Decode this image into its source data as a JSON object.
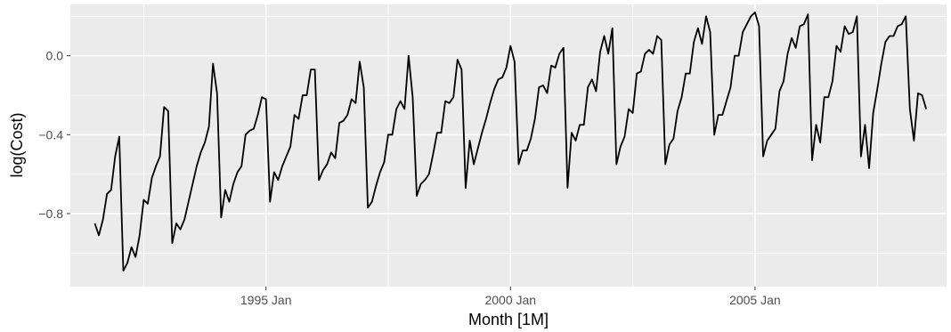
{
  "chart_data": {
    "type": "line",
    "xlabel": "Month [1M]",
    "ylabel": "log(Cost)",
    "x_start": "1991 Jul",
    "x_end": "2008 Jun",
    "x_step": "1 month",
    "xlim": [
      "1991 Jan",
      "2008 Dec"
    ],
    "ylim": [
      -1.17,
      0.26
    ],
    "x_ticks": [
      {
        "label": "1995 Jan",
        "value": "1995-01"
      },
      {
        "label": "2000 Jan",
        "value": "2000-01"
      },
      {
        "label": "2005 Jan",
        "value": "2005-01"
      }
    ],
    "x_minor_ticks": [
      "1992-07",
      "1997-07",
      "2002-07",
      "2007-07"
    ],
    "y_ticks": [
      {
        "label": "0.0",
        "value": 0.0
      },
      {
        "label": "−0.4",
        "value": -0.4
      },
      {
        "label": "−0.8",
        "value": -0.8
      }
    ],
    "y_minor_ticks": [
      -1.0,
      -0.6,
      -0.2,
      0.2
    ],
    "series": [
      {
        "values": [
          -0.85,
          -0.91,
          -0.83,
          -0.7,
          -0.68,
          -0.51,
          -0.41,
          -1.09,
          -1.05,
          -0.97,
          -1.02,
          -0.91,
          -0.73,
          -0.75,
          -0.62,
          -0.56,
          -0.51,
          -0.26,
          -0.28,
          -0.95,
          -0.85,
          -0.88,
          -0.83,
          -0.74,
          -0.65,
          -0.56,
          -0.49,
          -0.44,
          -0.36,
          -0.04,
          -0.19,
          -0.82,
          -0.68,
          -0.74,
          -0.65,
          -0.59,
          -0.56,
          -0.4,
          -0.38,
          -0.37,
          -0.3,
          -0.21,
          -0.22,
          -0.74,
          -0.59,
          -0.63,
          -0.56,
          -0.51,
          -0.46,
          -0.3,
          -0.32,
          -0.2,
          -0.2,
          -0.07,
          -0.07,
          -0.63,
          -0.58,
          -0.55,
          -0.49,
          -0.52,
          -0.34,
          -0.33,
          -0.3,
          -0.22,
          -0.24,
          -0.03,
          -0.16,
          -0.77,
          -0.74,
          -0.66,
          -0.59,
          -0.54,
          -0.4,
          -0.4,
          -0.27,
          -0.23,
          -0.27,
          0.0,
          -0.21,
          -0.71,
          -0.65,
          -0.63,
          -0.6,
          -0.5,
          -0.39,
          -0.39,
          -0.23,
          -0.24,
          -0.21,
          -0.02,
          -0.07,
          -0.67,
          -0.43,
          -0.55,
          -0.47,
          -0.39,
          -0.32,
          -0.24,
          -0.17,
          -0.12,
          -0.11,
          -0.06,
          0.05,
          -0.03,
          -0.55,
          -0.48,
          -0.48,
          -0.42,
          -0.32,
          -0.16,
          -0.15,
          -0.19,
          -0.05,
          -0.06,
          0.01,
          0.04,
          -0.67,
          -0.39,
          -0.43,
          -0.35,
          -0.35,
          -0.16,
          -0.12,
          -0.18,
          0.02,
          0.1,
          0.01,
          0.14,
          -0.55,
          -0.46,
          -0.41,
          -0.27,
          -0.29,
          -0.09,
          -0.08,
          0.01,
          0.03,
          0.01,
          0.1,
          0.08,
          -0.55,
          -0.45,
          -0.42,
          -0.28,
          -0.21,
          -0.09,
          -0.09,
          0.07,
          0.14,
          0.06,
          0.2,
          0.12,
          -0.4,
          -0.3,
          -0.3,
          -0.23,
          -0.16,
          0.0,
          0.0,
          0.12,
          0.16,
          0.2,
          0.22,
          0.15,
          -0.51,
          -0.43,
          -0.4,
          -0.37,
          -0.18,
          -0.13,
          0.01,
          0.09,
          0.04,
          0.15,
          0.16,
          0.21,
          -0.53,
          -0.35,
          -0.44,
          -0.21,
          -0.21,
          -0.13,
          0.05,
          0.02,
          0.15,
          0.11,
          0.12,
          0.2,
          -0.51,
          -0.35,
          -0.57,
          -0.29,
          -0.17,
          -0.04,
          0.07,
          0.1,
          0.1,
          0.15,
          0.16,
          0.2,
          -0.27,
          -0.43,
          -0.19,
          -0.2,
          -0.27
        ]
      }
    ]
  }
}
